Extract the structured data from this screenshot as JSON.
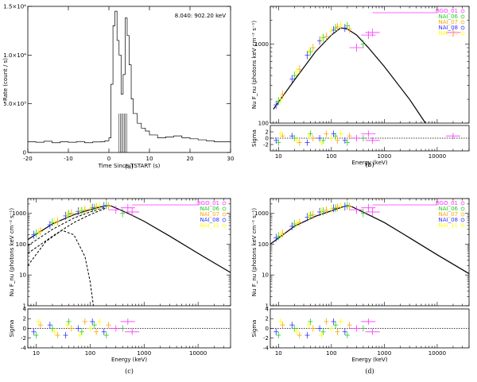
{
  "captions": [
    "(a)",
    "(b)",
    "(c)",
    "(d)"
  ],
  "colors": {
    "BGO_01": "#ff33ff",
    "NAI_06": "#1fd11f",
    "NAI_07": "#ffa500",
    "NAI_08": "#3333ff",
    "NAI_11": "#ffff00",
    "model": "#000000"
  },
  "chart_data": [
    {
      "panel": "a",
      "type": "line",
      "annotation": "8.040: 902.20 keV",
      "xlabel": "Time Since TSTART (s)",
      "ylabel": "Rate (count / s)",
      "xlim": [
        -20,
        30
      ],
      "ylim": [
        0,
        15000
      ],
      "xticks": [
        -20,
        -10,
        0,
        10,
        20,
        30
      ],
      "yticks": [
        0,
        5000,
        10000,
        15000
      ],
      "ytick_labels": [
        "0",
        "5.0×10³",
        "1.0×10⁴",
        "1.5×10⁴"
      ],
      "shaded_interval": [
        2.5,
        4.5
      ],
      "x": [
        -20,
        -18,
        -16,
        -14,
        -12,
        -10,
        -8,
        -6,
        -4,
        -2,
        -1,
        0,
        0.5,
        1,
        1.5,
        2,
        2.5,
        3,
        3.5,
        4,
        4.5,
        5,
        5.5,
        6,
        7,
        8,
        9,
        10,
        12,
        14,
        16,
        18,
        20,
        22,
        24,
        26,
        28,
        30
      ],
      "y": [
        1100,
        1050,
        1150,
        1000,
        1100,
        1050,
        1120,
        1000,
        1080,
        1100,
        1200,
        1500,
        7000,
        13000,
        14500,
        11500,
        10000,
        6000,
        8000,
        13800,
        12000,
        9000,
        5500,
        4000,
        3000,
        2500,
        2200,
        1800,
        1500,
        1600,
        1700,
        1500,
        1400,
        1300,
        1200,
        1100,
        1100,
        1050
      ]
    },
    {
      "panel": "b",
      "type": "scatter",
      "xlabel": "Energy (keV)",
      "ylabel": "Nu F_nu (photons keV cm⁻² s⁻¹)",
      "residual_label": "Sigma",
      "xlim": [
        7,
        40000
      ],
      "ylim": [
        100,
        3000
      ],
      "yticks": [
        100,
        1000
      ],
      "xticks": [
        10,
        100,
        1000,
        10000
      ],
      "legend": [
        "BGO_01",
        "NAI_06",
        "NAI_07",
        "NAI_08",
        "NAI_11"
      ],
      "legend_position": "top-right",
      "model_x": [
        8,
        20,
        50,
        100,
        150,
        200,
        300,
        500,
        1000,
        3000,
        6000
      ],
      "model_y": [
        150,
        350,
        800,
        1300,
        1600,
        1550,
        1300,
        900,
        520,
        200,
        100
      ],
      "points": {
        "NAI_06": [
          [
            10,
            190
          ],
          [
            20,
            400
          ],
          [
            40,
            800
          ],
          [
            70,
            1200
          ],
          [
            120,
            1600
          ],
          [
            200,
            1700
          ],
          [
            400,
            1000
          ]
        ],
        "NAI_07": [
          [
            12,
            230
          ],
          [
            25,
            480
          ],
          [
            45,
            900
          ],
          [
            80,
            1250
          ],
          [
            130,
            1650
          ],
          [
            220,
            1550
          ]
        ],
        "NAI_08": [
          [
            9,
            170
          ],
          [
            18,
            360
          ],
          [
            35,
            720
          ],
          [
            60,
            1100
          ],
          [
            110,
            1500
          ],
          [
            180,
            1600
          ]
        ],
        "NAI_11": [
          [
            11,
            200
          ],
          [
            22,
            450
          ],
          [
            38,
            820
          ],
          [
            65,
            1180
          ],
          [
            100,
            1450
          ],
          [
            150,
            1750
          ]
        ],
        "BGO_01": [
          [
            300,
            900
          ],
          [
            500,
            1300
          ],
          [
            600,
            1400
          ],
          [
            20000,
            1400
          ]
        ]
      },
      "residual_ylim": [
        -4,
        4
      ],
      "residual_ticks": [
        -2,
        0,
        2
      ]
    },
    {
      "panel": "c",
      "type": "scatter",
      "xlabel": "Energy (keV)",
      "ylabel": "Nu F_nu (photons keV cm⁻² s⁻¹)",
      "residual_label": "Sigma",
      "xlim": [
        7,
        40000
      ],
      "ylim": [
        1,
        3000
      ],
      "yticks": [
        1,
        10,
        100,
        1000
      ],
      "xticks": [
        10,
        100,
        1000,
        10000
      ],
      "legend": [
        "BGO_01",
        "NAI_06",
        "NAI_07",
        "NAI_08",
        "NAI_11"
      ],
      "legend_position": "top-right",
      "model_x": [
        7,
        20,
        50,
        100,
        200,
        250,
        500,
        1000,
        3000,
        10000,
        40000
      ],
      "model_y": [
        140,
        450,
        900,
        1300,
        1800,
        1700,
        1000,
        550,
        180,
        50,
        12
      ],
      "component_1_x": [
        7,
        20,
        50,
        100,
        200
      ],
      "component_1_y": [
        90,
        300,
        700,
        1100,
        1600
      ],
      "component_2_x": [
        7,
        20,
        50,
        100,
        200
      ],
      "component_2_y": [
        50,
        180,
        500,
        900,
        1500
      ],
      "component_3_x": [
        7,
        15,
        30,
        50,
        80,
        100,
        115
      ],
      "component_3_y": [
        20,
        120,
        280,
        200,
        40,
        6,
        1
      ],
      "points": {
        "NAI_06": [
          [
            10,
            220
          ],
          [
            20,
            500
          ],
          [
            40,
            950
          ],
          [
            70,
            1200
          ],
          [
            120,
            1500
          ],
          [
            200,
            1800
          ],
          [
            400,
            1000
          ]
        ],
        "NAI_07": [
          [
            12,
            260
          ],
          [
            25,
            550
          ],
          [
            45,
            1000
          ],
          [
            80,
            1300
          ],
          [
            130,
            1600
          ],
          [
            220,
            1700
          ]
        ],
        "NAI_08": [
          [
            9,
            200
          ],
          [
            18,
            420
          ],
          [
            35,
            820
          ],
          [
            60,
            1150
          ],
          [
            110,
            1500
          ],
          [
            180,
            1700
          ]
        ],
        "NAI_11": [
          [
            11,
            240
          ],
          [
            22,
            520
          ],
          [
            38,
            900
          ],
          [
            65,
            1250
          ],
          [
            100,
            1450
          ],
          [
            150,
            1750
          ]
        ],
        "BGO_01": [
          [
            300,
            1300
          ],
          [
            500,
            1500
          ],
          [
            600,
            1100
          ]
        ]
      },
      "residual_ylim": [
        -4,
        4
      ],
      "residual_ticks": [
        -4,
        -2,
        0,
        2,
        4
      ]
    },
    {
      "panel": "d",
      "type": "scatter",
      "xlabel": "Energy (keV)",
      "ylabel": "Nu F_nu (photons keV cm⁻² s⁻¹)",
      "residual_label": "Sigma",
      "xlim": [
        7,
        40000
      ],
      "ylim": [
        1,
        3000
      ],
      "yticks": [
        1,
        10,
        100,
        1000
      ],
      "xticks": [
        10,
        100,
        1000,
        10000
      ],
      "legend": [
        "BGO_01",
        "NAI_06",
        "NAI_07",
        "NAI_08",
        "NAI_11"
      ],
      "legend_position": "top-right",
      "model_x": [
        7,
        20,
        50,
        100,
        200,
        250,
        500,
        1000,
        3000,
        10000,
        40000
      ],
      "model_y": [
        100,
        380,
        800,
        1200,
        1800,
        1600,
        900,
        500,
        160,
        45,
        11
      ],
      "points": {
        "NAI_06": [
          [
            10,
            180
          ],
          [
            20,
            450
          ],
          [
            40,
            850
          ],
          [
            70,
            1150
          ],
          [
            120,
            1450
          ],
          [
            200,
            1750
          ],
          [
            400,
            1000
          ]
        ],
        "NAI_07": [
          [
            12,
            220
          ],
          [
            25,
            500
          ],
          [
            45,
            900
          ],
          [
            80,
            1250
          ],
          [
            130,
            1550
          ],
          [
            220,
            1650
          ]
        ],
        "NAI_08": [
          [
            9,
            160
          ],
          [
            18,
            380
          ],
          [
            35,
            750
          ],
          [
            60,
            1100
          ],
          [
            110,
            1450
          ],
          [
            180,
            1650
          ]
        ],
        "NAI_11": [
          [
            11,
            200
          ],
          [
            22,
            470
          ],
          [
            38,
            820
          ],
          [
            65,
            1200
          ],
          [
            100,
            1400
          ],
          [
            150,
            1700
          ]
        ],
        "BGO_01": [
          [
            300,
            1300
          ],
          [
            500,
            1500
          ],
          [
            600,
            1100
          ]
        ]
      },
      "residual_ylim": [
        -4,
        4
      ],
      "residual_ticks": [
        -4,
        -2,
        0,
        2,
        4
      ]
    }
  ]
}
